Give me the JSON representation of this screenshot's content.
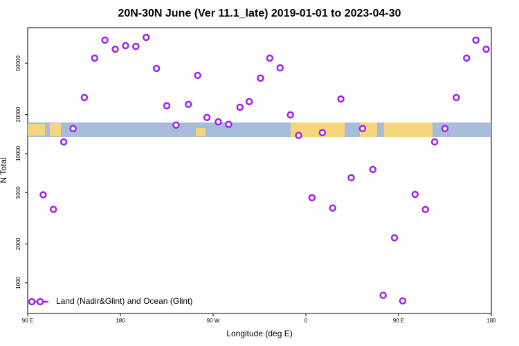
{
  "chart_data": {
    "type": "scatter",
    "title": "20N-30N June (Ver 11.1_late)   2019-01-01 to 2023-04-30",
    "x_label": "Longitude (deg E)",
    "y_label": "N Total",
    "log_y": true,
    "legend_position": "bottom-left",
    "xlim": [
      90,
      540
    ],
    "xticks": [
      {
        "value": 90,
        "label": "90 E"
      },
      180,
      {
        "value": 270,
        "label": "90 W"
      },
      {
        "value": 360,
        "label": "0"
      },
      {
        "value": 450,
        "label": "90 E"
      },
      {
        "value": 540,
        "label": "180"
      }
    ],
    "ylim": [
      580,
      94000
    ],
    "yticks": [
      1000,
      2000,
      5000,
      10000,
      20000,
      50000
    ],
    "series": [
      {
        "name": "Land (Nadir&Glint) and Ocean (Glint)",
        "color": "#a020f0",
        "x": [
          105,
          115,
          125,
          134,
          145,
          155,
          165,
          175,
          185,
          195,
          205,
          215,
          225,
          234,
          246,
          255,
          264,
          275,
          285,
          296,
          305,
          316,
          325,
          335,
          345,
          353,
          366,
          376,
          386,
          394,
          404,
          415,
          425,
          435,
          446,
          454,
          466,
          476,
          485,
          495,
          506,
          516,
          525,
          535
        ],
        "values": [
          4800,
          3700,
          12300,
          15600,
          27100,
          54700,
          75300,
          64100,
          68200,
          67400,
          79100,
          45500,
          23400,
          16600,
          24000,
          40200,
          19000,
          17600,
          16800,
          22800,
          25200,
          38300,
          54700,
          46000,
          19900,
          13800,
          4550,
          14500,
          3790,
          26400,
          6500,
          15600,
          7530,
          802,
          2230,
          726,
          4830,
          3690,
          12300,
          15600,
          27100,
          54700,
          75300,
          64100
        ]
      }
    ]
  }
}
